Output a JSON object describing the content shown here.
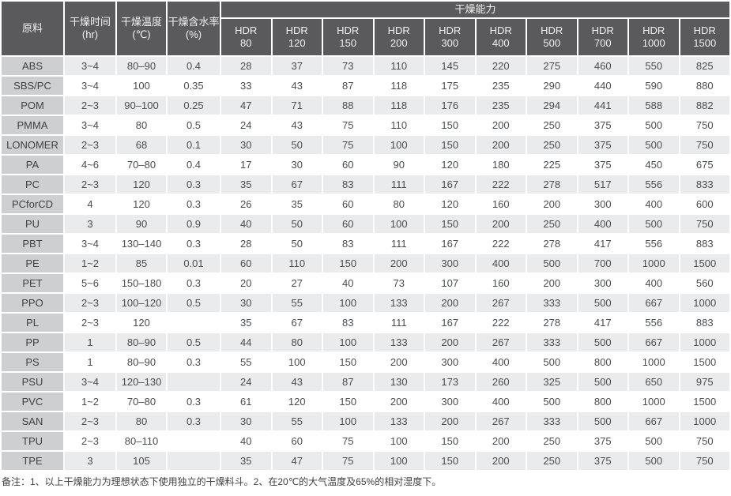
{
  "table": {
    "capacity_header": "干燥能力",
    "headers": [
      {
        "title": "原料",
        "unit": ""
      },
      {
        "title": "干燥时间",
        "unit": "(hr)"
      },
      {
        "title": "干燥温度",
        "unit": "(℃)"
      },
      {
        "title": "干燥含水率",
        "unit": "(%)"
      }
    ],
    "hdr_models": [
      "HDR 80",
      "HDR 120",
      "HDR 150",
      "HDR 200",
      "HDR 300",
      "HDR 400",
      "HDR 500",
      "HDR 700",
      "HDR 1000",
      "HDR 1500"
    ],
    "rows": [
      {
        "material": "ABS",
        "time": "3~4",
        "temp": "80–90",
        "moisture": "0.4",
        "values": [
          28,
          37,
          73,
          110,
          145,
          220,
          275,
          460,
          550,
          825
        ]
      },
      {
        "material": "SBS/PC",
        "time": "3~4",
        "temp": "100",
        "moisture": "0.35",
        "values": [
          33,
          43,
          87,
          118,
          175,
          235,
          290,
          440,
          590,
          880
        ]
      },
      {
        "material": "POM",
        "time": "2~3",
        "temp": "90–100",
        "moisture": "0.25",
        "values": [
          47,
          71,
          88,
          118,
          176,
          235,
          294,
          441,
          588,
          882
        ]
      },
      {
        "material": "PMMA",
        "time": "3~4",
        "temp": "80",
        "moisture": "0.5",
        "values": [
          24,
          43,
          75,
          110,
          150,
          200,
          250,
          375,
          500,
          750
        ]
      },
      {
        "material": "LONOMER",
        "time": "2~3",
        "temp": "68",
        "moisture": "0.1",
        "values": [
          30,
          50,
          75,
          100,
          150,
          200,
          250,
          375,
          500,
          750
        ]
      },
      {
        "material": "PA",
        "time": "4~6",
        "temp": "70–80",
        "moisture": "0.4",
        "values": [
          17,
          30,
          60,
          90,
          120,
          180,
          225,
          375,
          450,
          675
        ]
      },
      {
        "material": "PC",
        "time": "2~3",
        "temp": "120",
        "moisture": "0.3",
        "values": [
          35,
          67,
          83,
          111,
          167,
          222,
          278,
          517,
          556,
          833
        ]
      },
      {
        "material": "PCforCD",
        "time": "4",
        "temp": "120",
        "moisture": "0.3",
        "values": [
          26,
          35,
          60,
          80,
          120,
          160,
          200,
          300,
          400,
          600
        ]
      },
      {
        "material": "PU",
        "time": "3",
        "temp": "90",
        "moisture": "0.9",
        "values": [
          40,
          50,
          60,
          100,
          150,
          200,
          250,
          400,
          500,
          750
        ]
      },
      {
        "material": "PBT",
        "time": "3~4",
        "temp": "130–140",
        "moisture": "0.3",
        "values": [
          28,
          50,
          83,
          111,
          167,
          222,
          278,
          417,
          556,
          883
        ]
      },
      {
        "material": "PE",
        "time": "1~2",
        "temp": "85",
        "moisture": "0.01",
        "values": [
          60,
          110,
          150,
          200,
          300,
          400,
          500,
          700,
          1000,
          1500
        ]
      },
      {
        "material": "PET",
        "time": "5~6",
        "temp": "150–180",
        "moisture": "0.3",
        "values": [
          20,
          27,
          40,
          73,
          107,
          160,
          200,
          300,
          400,
          560
        ]
      },
      {
        "material": "PPO",
        "time": "2~3",
        "temp": "100–120",
        "moisture": "0.5",
        "values": [
          30,
          55,
          100,
          133,
          200,
          267,
          333,
          500,
          667,
          1000
        ]
      },
      {
        "material": "PL",
        "time": "2~3",
        "temp": "120",
        "moisture": "",
        "values": [
          35,
          67,
          83,
          111,
          167,
          222,
          278,
          417,
          556,
          883
        ]
      },
      {
        "material": "PP",
        "time": "1",
        "temp": "80–90",
        "moisture": "0.5",
        "values": [
          44,
          80,
          100,
          133,
          200,
          267,
          333,
          500,
          667,
          1000
        ]
      },
      {
        "material": "PS",
        "time": "1",
        "temp": "80–90",
        "moisture": "0.3",
        "values": [
          55,
          100,
          150,
          200,
          300,
          400,
          500,
          800,
          1000,
          1500
        ]
      },
      {
        "material": "PSU",
        "time": "3~4",
        "temp": "120–130",
        "moisture": "",
        "values": [
          24,
          43,
          87,
          130,
          173,
          260,
          325,
          500,
          650,
          975
        ]
      },
      {
        "material": "PVC",
        "time": "1~2",
        "temp": "70–80",
        "moisture": "0.3",
        "values": [
          61,
          120,
          150,
          200,
          300,
          400,
          500,
          800,
          1000,
          1500
        ]
      },
      {
        "material": "SAN",
        "time": "2~3",
        "temp": "80",
        "moisture": "0.3",
        "values": [
          30,
          55,
          100,
          133,
          200,
          267,
          333,
          500,
          667,
          1000
        ]
      },
      {
        "material": "TPU",
        "time": "2~3",
        "temp": "80–110",
        "moisture": "",
        "values": [
          40,
          60,
          75,
          100,
          150,
          200,
          250,
          375,
          500,
          750
        ]
      },
      {
        "material": "TPE",
        "time": "3",
        "temp": "105",
        "moisture": "",
        "values": [
          35,
          47,
          75,
          100,
          150,
          200,
          250,
          375,
          500,
          750
        ]
      }
    ],
    "note": "备注：1、以上干燥能力为理想状态下使用独立的干燥料斗。2、在20℃的大气温度及65%的相对湿度下。",
    "colors": {
      "header_bg": "#5a5a5c",
      "material_col_bg": "#cdcfd0",
      "stripe_bg": "#e9ebec",
      "cell_bg": "#ffffff"
    }
  }
}
